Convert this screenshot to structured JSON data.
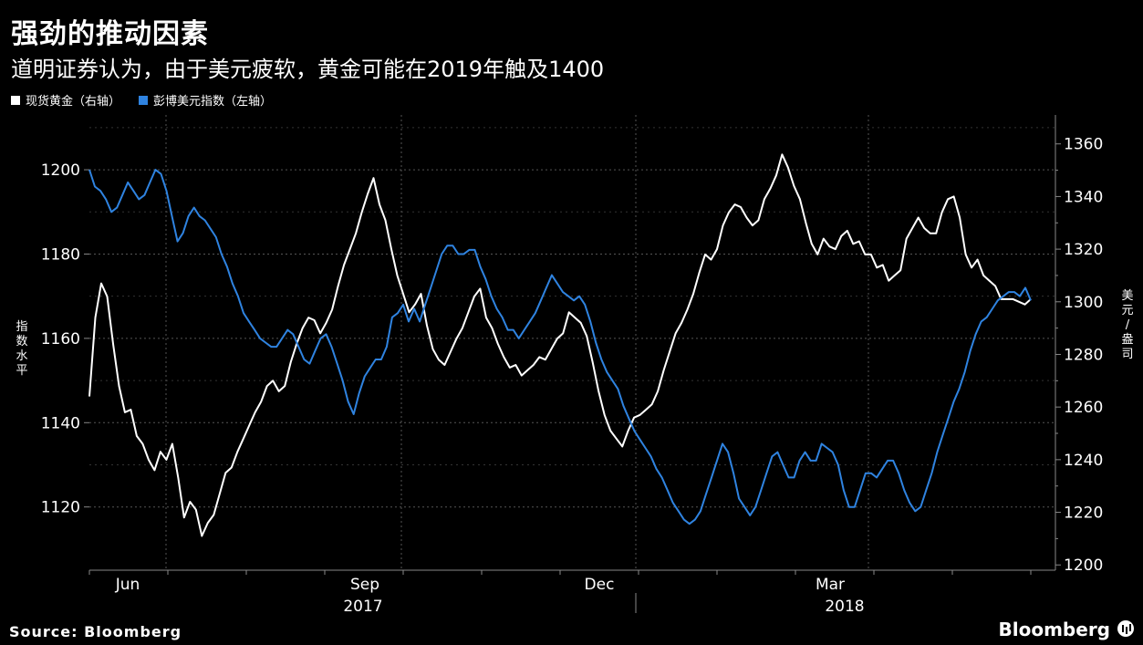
{
  "header": {
    "title": "强劲的推动因素",
    "subtitle": "道明证券认为，由于美元疲软，黄金可能在2019年触及1400"
  },
  "legend": [
    {
      "label": "现货黄金（右轴）",
      "color": "#ffffff"
    },
    {
      "label": "彭博美元指数（左轴）",
      "color": "#2f83e0"
    }
  ],
  "footer": {
    "source": "Source: Bloomberg",
    "brand": "Bloomberg"
  },
  "chart_data": {
    "type": "line",
    "x_axis": {
      "months": [
        "Jun",
        "Sep",
        "Dec",
        "Mar"
      ],
      "years": [
        "2017",
        "2018"
      ]
    },
    "left_axis": {
      "title": "指数水平",
      "ylim": [
        1105,
        1213
      ],
      "ticks": [
        1120,
        1140,
        1160,
        1180,
        1200
      ]
    },
    "right_axis": {
      "title": "美元/盎司",
      "ylim": [
        1198,
        1371
      ],
      "ticks": [
        1200,
        1220,
        1240,
        1260,
        1280,
        1300,
        1320,
        1340,
        1360
      ]
    },
    "grid": true,
    "series": [
      {
        "name": "现货黄金（右轴）",
        "axis": "right",
        "color": "#ffffff",
        "values": [
          1264,
          1294,
          1307,
          1302,
          1284,
          1268,
          1258,
          1259,
          1249,
          1246,
          1240,
          1236,
          1243,
          1240,
          1246,
          1233,
          1218,
          1224,
          1221,
          1211,
          1216,
          1219,
          1227,
          1235,
          1237,
          1243,
          1248,
          1253,
          1258,
          1262,
          1268,
          1270,
          1266,
          1268,
          1277,
          1284,
          1290,
          1294,
          1293,
          1288,
          1292,
          1297,
          1306,
          1314,
          1320,
          1326,
          1334,
          1341,
          1347,
          1337,
          1331,
          1320,
          1310,
          1303,
          1296,
          1299,
          1303,
          1291,
          1282,
          1278,
          1276,
          1281,
          1286,
          1290,
          1296,
          1302,
          1305,
          1294,
          1290,
          1284,
          1279,
          1275,
          1276,
          1272,
          1274,
          1276,
          1279,
          1278,
          1282,
          1286,
          1288,
          1296,
          1294,
          1292,
          1287,
          1277,
          1266,
          1257,
          1251,
          1248,
          1245,
          1251,
          1256,
          1257,
          1259,
          1261,
          1266,
          1274,
          1281,
          1288,
          1292,
          1297,
          1303,
          1311,
          1318,
          1316,
          1320,
          1329,
          1334,
          1337,
          1336,
          1332,
          1329,
          1331,
          1339,
          1343,
          1348,
          1356,
          1351,
          1344,
          1339,
          1330,
          1322,
          1318,
          1324,
          1321,
          1320,
          1325,
          1327,
          1322,
          1323,
          1318,
          1318,
          1313,
          1314,
          1308,
          1310,
          1312,
          1324,
          1328,
          1332,
          1328,
          1326,
          1326,
          1334,
          1339,
          1340,
          1332,
          1318,
          1313,
          1316,
          1310,
          1308,
          1306,
          1301,
          1301,
          1301,
          1300,
          1299,
          1301
        ]
      },
      {
        "name": "彭博美元指数（左轴）",
        "axis": "left",
        "color": "#2f83e0",
        "values": [
          1200,
          1196,
          1195,
          1193,
          1190,
          1191,
          1194,
          1197,
          1195,
          1193,
          1194,
          1197,
          1200,
          1199,
          1195,
          1189,
          1183,
          1185,
          1189,
          1191,
          1189,
          1188,
          1186,
          1184,
          1180,
          1177,
          1173,
          1170,
          1166,
          1164,
          1162,
          1160,
          1159,
          1158,
          1158,
          1160,
          1162,
          1161,
          1158,
          1155,
          1154,
          1157,
          1160,
          1161,
          1158,
          1154,
          1150,
          1145,
          1142,
          1147,
          1151,
          1153,
          1155,
          1155,
          1158,
          1165,
          1166,
          1168,
          1164,
          1167,
          1164,
          1168,
          1172,
          1176,
          1180,
          1182,
          1182,
          1180,
          1180,
          1181,
          1181,
          1177,
          1174,
          1170,
          1167,
          1165,
          1162,
          1162,
          1160,
          1162,
          1164,
          1166,
          1169,
          1172,
          1175,
          1173,
          1171,
          1170,
          1169,
          1170,
          1168,
          1164,
          1159,
          1155,
          1152,
          1150,
          1148,
          1144,
          1141,
          1138,
          1136,
          1134,
          1132,
          1129,
          1127,
          1124,
          1121,
          1119,
          1117,
          1116,
          1117,
          1119,
          1123,
          1127,
          1131,
          1135,
          1133,
          1128,
          1122,
          1120,
          1118,
          1120,
          1124,
          1128,
          1132,
          1133,
          1130,
          1127,
          1127,
          1131,
          1133,
          1131,
          1131,
          1135,
          1134,
          1133,
          1130,
          1124,
          1120,
          1120,
          1124,
          1128,
          1128,
          1127,
          1129,
          1131,
          1131,
          1128,
          1124,
          1121,
          1119,
          1120,
          1124,
          1128,
          1133,
          1137,
          1141,
          1145,
          1148,
          1152,
          1157,
          1161,
          1164,
          1165,
          1167,
          1169,
          1170,
          1171,
          1171,
          1170,
          1172,
          1169
        ]
      }
    ]
  }
}
